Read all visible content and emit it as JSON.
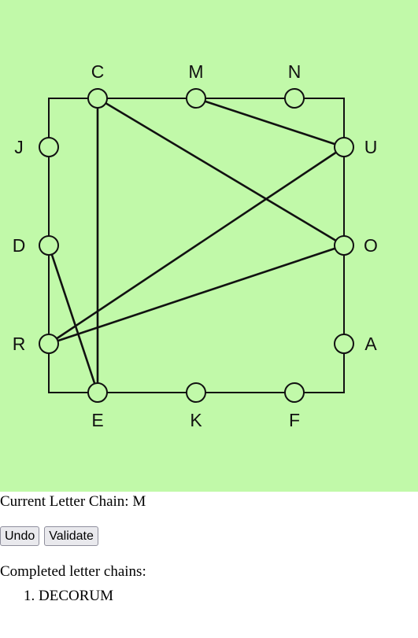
{
  "board": {
    "background_color": "#c1f9a9",
    "top_letters": [
      "C",
      "M",
      "N"
    ],
    "right_letters": [
      "U",
      "O",
      "A"
    ],
    "bottom_letters": [
      "E",
      "K",
      "F"
    ],
    "left_letters": [
      "J",
      "D",
      "R"
    ],
    "drawn_connections": [
      [
        "C",
        "O"
      ],
      [
        "C",
        "E"
      ],
      [
        "M",
        "U"
      ],
      [
        "U",
        "R"
      ],
      [
        "O",
        "R"
      ],
      [
        "D",
        "E"
      ]
    ]
  },
  "status": {
    "chain_label": "Current Letter Chain:",
    "chain_value": "M"
  },
  "controls": {
    "undo_label": "Undo",
    "validate_label": "Validate"
  },
  "completed": {
    "heading": "Completed letter chains:",
    "chains": [
      "DECORUM"
    ]
  }
}
